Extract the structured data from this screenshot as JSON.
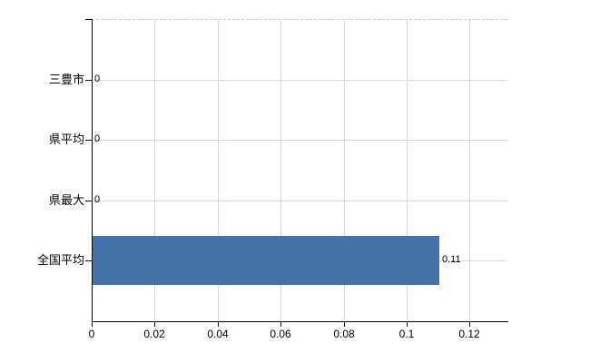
{
  "chart_data": {
    "type": "bar",
    "orientation": "horizontal",
    "title": "",
    "xlabel": "",
    "ylabel": "",
    "categories": [
      "三豊市",
      "県平均",
      "県最大",
      "全国平均"
    ],
    "values": [
      0,
      0,
      0,
      0.11
    ],
    "value_labels": [
      "0",
      "0",
      "0",
      "0.11"
    ],
    "x_tick_values": [
      0,
      0.02,
      0.04,
      0.06,
      0.08,
      0.1,
      0.12
    ],
    "x_tick_labels": [
      "0",
      "0.02",
      "0.04",
      "0.06",
      "0.08",
      "0.1",
      "0.12"
    ],
    "xlim": [
      0,
      0.132
    ],
    "grid": true,
    "legend_position": "none",
    "bar_color": "#4572a7",
    "gridline_color": "#d9d9d9",
    "axis_color": "#000000",
    "label_color": "#000000",
    "background_color": "#ffffff"
  }
}
